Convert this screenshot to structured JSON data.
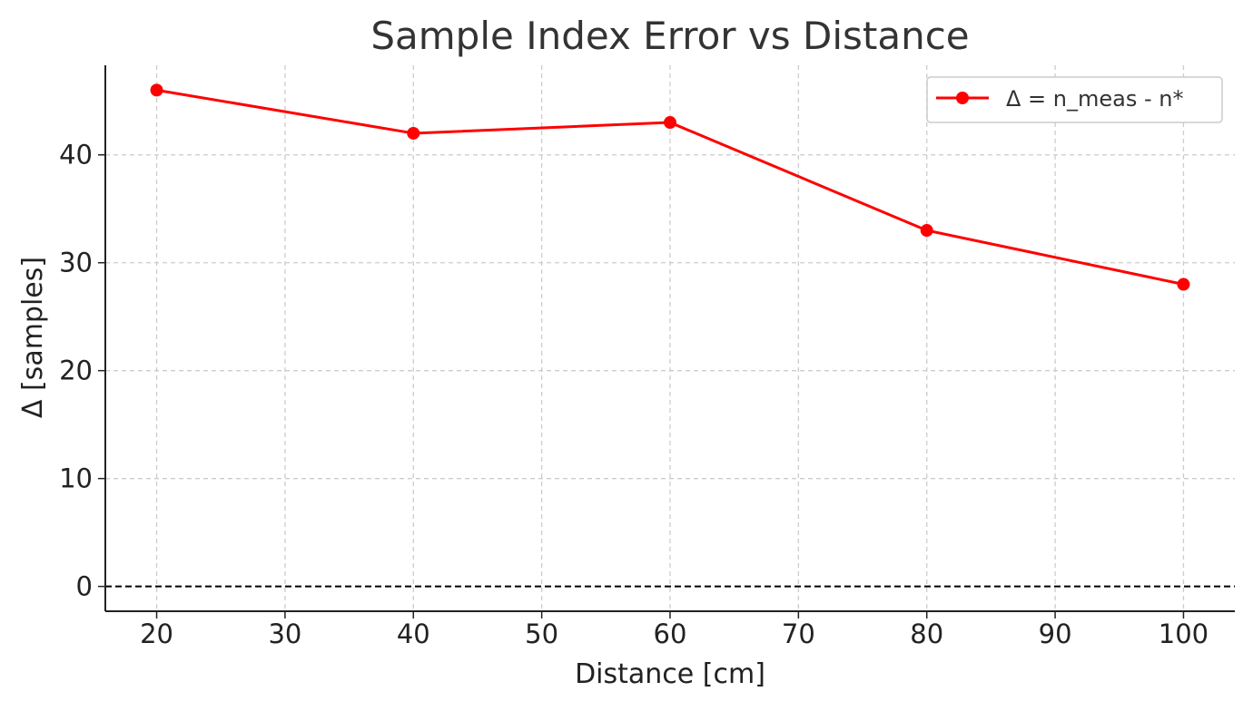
{
  "chart_data": {
    "type": "line",
    "title": "Sample Index Error vs Distance",
    "xlabel": "Distance [cm]",
    "ylabel": "Δ [samples]",
    "x": [
      20,
      40,
      60,
      80,
      100
    ],
    "series": [
      {
        "name": "Δ = n_meas - n*",
        "values": [
          46,
          42,
          43,
          33,
          28
        ],
        "color": "#ff0000",
        "marker": "circle"
      }
    ],
    "reference_line": {
      "y": 0,
      "style": "dashed",
      "color": "#000000"
    },
    "xlim": [
      16,
      104
    ],
    "ylim": [
      -2.3,
      48.3
    ],
    "xticks": [
      20,
      30,
      40,
      50,
      60,
      70,
      80,
      90,
      100
    ],
    "yticks": [
      0,
      10,
      20,
      30,
      40
    ],
    "grid": true,
    "legend_position": "top-right"
  }
}
